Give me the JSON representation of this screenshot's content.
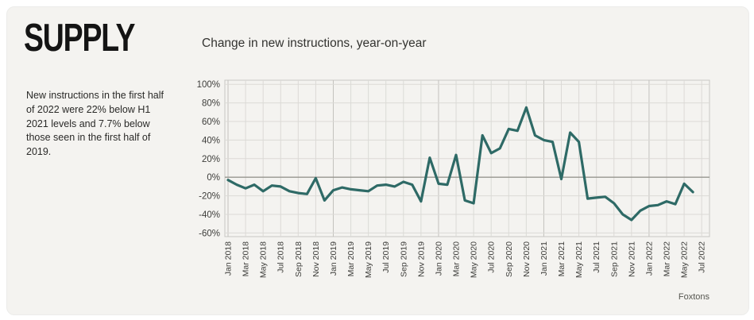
{
  "page": {
    "background": "#ffffff",
    "card_background": "#f4f3f0"
  },
  "header": {
    "title": "SUPPLY"
  },
  "note": "New instructions in the first half of 2022 were 22% below H1 2021 levels and 7.7% below those seen in the first half of 2019.",
  "chart_data": {
    "type": "line",
    "title": "Change in new instructions, year-on-year",
    "source": "Foxtons",
    "legend": "none",
    "grid": true,
    "ylim": [
      -60,
      100
    ],
    "y_ticks": [
      100,
      80,
      60,
      40,
      20,
      0,
      -20,
      -40,
      -60
    ],
    "y_tick_suffix": "%",
    "x_tick_labels": [
      "Jan 2018",
      "Mar 2018",
      "May 2018",
      "Jul 2018",
      "Sep 2018",
      "Nov 2018",
      "Jan 2019",
      "Mar 2019",
      "May 2019",
      "Jul 2019",
      "Sep 2019",
      "Nov 2019",
      "Jan 2020",
      "Mar 2020",
      "May 2020",
      "Jul 2020",
      "Sep 2020",
      "Nov 2020",
      "Jan 2021",
      "Mar 2021",
      "May 2021",
      "Jul 2021",
      "Sep 2021",
      "Nov 2021",
      "Jan 2022",
      "Mar 2022",
      "May 2022",
      "Jul 2022"
    ],
    "months": [
      "Jan 2018",
      "Feb 2018",
      "Mar 2018",
      "Apr 2018",
      "May 2018",
      "Jun 2018",
      "Jul 2018",
      "Aug 2018",
      "Sep 2018",
      "Oct 2018",
      "Nov 2018",
      "Dec 2018",
      "Jan 2019",
      "Feb 2019",
      "Mar 2019",
      "Apr 2019",
      "May 2019",
      "Jun 2019",
      "Jul 2019",
      "Aug 2019",
      "Sep 2019",
      "Oct 2019",
      "Nov 2019",
      "Dec 2019",
      "Jan 2020",
      "Feb 2020",
      "Mar 2020",
      "Apr 2020",
      "May 2020",
      "Jun 2020",
      "Jul 2020",
      "Aug 2020",
      "Sep 2020",
      "Oct 2020",
      "Nov 2020",
      "Dec 2020",
      "Jan 2021",
      "Feb 2021",
      "Mar 2021",
      "Apr 2021",
      "May 2021",
      "Jun 2021",
      "Jul 2021",
      "Aug 2021",
      "Sep 2021",
      "Oct 2021",
      "Nov 2021",
      "Dec 2021",
      "Jan 2022",
      "Feb 2022",
      "Mar 2022",
      "Apr 2022",
      "May 2022",
      "Jun 2022"
    ],
    "values": [
      -3,
      -8,
      -12,
      -8,
      -15,
      -9,
      -10,
      -15,
      -17,
      -18,
      -1,
      -25,
      -14,
      -11,
      -13,
      -14,
      -15,
      -9,
      -8,
      -10,
      -5,
      -8,
      -26,
      21,
      -7,
      -8,
      24,
      -25,
      -28,
      45,
      26,
      31,
      52,
      50,
      75,
      45,
      40,
      38,
      -2,
      48,
      38,
      -23,
      -22,
      -21,
      -28,
      -40,
      -46,
      -36,
      -31,
      -30,
      -26,
      -29,
      -7,
      -16
    ],
    "line_color": "#2e6a66",
    "grid_color": "#dbdad6",
    "year_grid_color": "#c3c2be",
    "zero_line_color": "#97968f",
    "border_color": "#c8c7c3",
    "axis_label_color": "#3d3d3a"
  }
}
